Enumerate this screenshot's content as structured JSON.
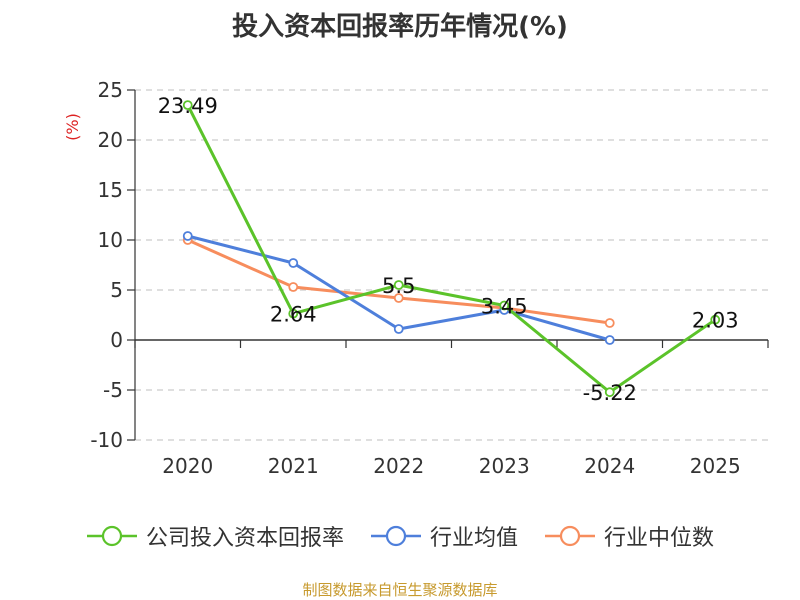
{
  "chart_data": {
    "type": "line",
    "title": "投入资本回报率历年情况(%)",
    "ylabel": "(%)",
    "categories": [
      "2020",
      "2021",
      "2022",
      "2023",
      "2024",
      "2025"
    ],
    "ylim": [
      -10,
      25
    ],
    "yticks": [
      25,
      20,
      15,
      10,
      5,
      0,
      -5,
      -10
    ],
    "grid": true,
    "legend_position": "bottom",
    "series": [
      {
        "name": "公司投入资本回报率",
        "color": "#5bc32a",
        "values": [
          23.49,
          2.64,
          5.5,
          3.45,
          -5.22,
          2.03
        ],
        "labels": [
          "23.49",
          "2.64",
          "5.5",
          "3.45",
          "-5.22",
          "2.03"
        ]
      },
      {
        "name": "行业均值",
        "color": "#4e7fdb",
        "values": [
          10.4,
          7.7,
          1.1,
          3.0,
          0.0,
          null
        ]
      },
      {
        "name": "行业中位数",
        "color": "#f78d5d",
        "values": [
          10.0,
          5.3,
          4.2,
          3.2,
          1.7,
          null
        ]
      }
    ]
  },
  "source": "制图数据来自恒生聚源数据库"
}
